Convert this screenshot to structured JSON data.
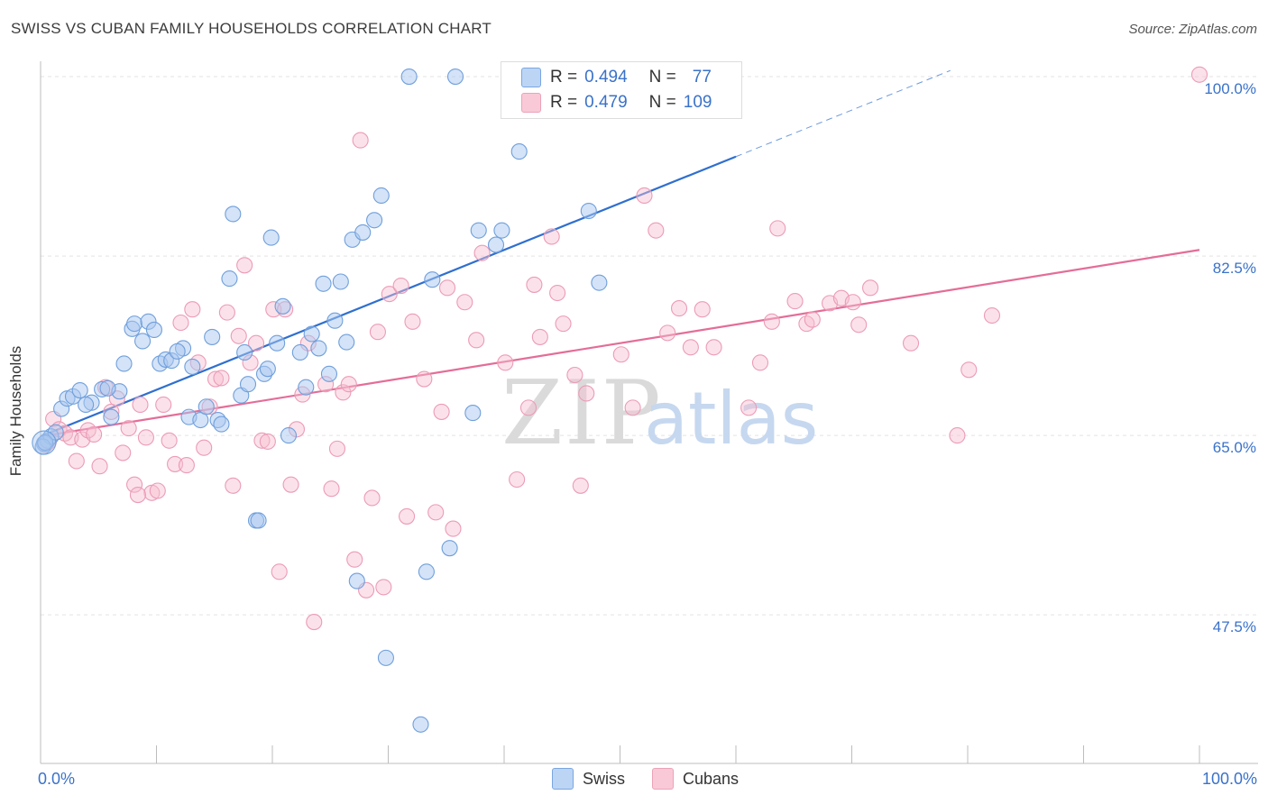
{
  "header": {
    "title": "SWISS VS CUBAN FAMILY HOUSEHOLDS CORRELATION CHART",
    "source": "Source: ZipAtlas.com"
  },
  "watermark": {
    "zip": "ZIP",
    "atlas": "atlas"
  },
  "stats": {
    "swiss": {
      "r_label": "R =",
      "r_value": "0.494",
      "n_label": "N =",
      "n_value": "77"
    },
    "cubans": {
      "r_label": "R =",
      "r_value": "0.479",
      "n_label": "N =",
      "n_value": "109"
    }
  },
  "legend": {
    "swiss": "Swiss",
    "cubans": "Cubans"
  },
  "colors": {
    "swiss_fill": "#a9c8f0",
    "swiss_line": "#2f6fcf",
    "cubans_fill": "#f7bed0",
    "cubans_line": "#e46d98",
    "tick_label": "#3a72c9"
  },
  "chart_data": {
    "type": "scatter",
    "xlabel": "",
    "ylabel": "Family Households",
    "xlim": [
      0,
      100
    ],
    "ylim": [
      33,
      101.5
    ],
    "x_tick_labels": [
      "0.0%",
      "100.0%"
    ],
    "y_ticks": [
      47.5,
      65.0,
      82.5,
      100.0
    ],
    "y_tick_labels": [
      "47.5%",
      "65.0%",
      "82.5%",
      "100.0%"
    ],
    "grid": true,
    "series": [
      {
        "name": "Swiss",
        "r": 0.494,
        "n": 77,
        "trend": {
          "x": [
            0,
            60
          ],
          "y": [
            64.9,
            92.2
          ],
          "dashed_to": [
            78.5,
            100.6
          ]
        },
        "points": [
          [
            0.3,
            64.2
          ],
          [
            0.6,
            64.5
          ],
          [
            0.9,
            64.9
          ],
          [
            1.3,
            65.3
          ],
          [
            1.8,
            67.6
          ],
          [
            2.3,
            68.6
          ],
          [
            2.8,
            68.8
          ],
          [
            3.4,
            69.4
          ],
          [
            4.4,
            68.2
          ],
          [
            5.3,
            69.5
          ],
          [
            6.1,
            66.8
          ],
          [
            6.8,
            69.3
          ],
          [
            7.2,
            72.0
          ],
          [
            7.9,
            75.4
          ],
          [
            8.1,
            75.9
          ],
          [
            8.8,
            74.2
          ],
          [
            9.3,
            76.1
          ],
          [
            9.8,
            75.3
          ],
          [
            10.3,
            72.0
          ],
          [
            10.8,
            72.4
          ],
          [
            11.3,
            72.3
          ],
          [
            12.3,
            73.5
          ],
          [
            12.8,
            66.8
          ],
          [
            13.1,
            71.7
          ],
          [
            13.8,
            66.5
          ],
          [
            14.3,
            67.8
          ],
          [
            14.8,
            74.6
          ],
          [
            15.3,
            66.5
          ],
          [
            15.6,
            66.1
          ],
          [
            16.3,
            80.3
          ],
          [
            16.6,
            86.6
          ],
          [
            17.3,
            68.9
          ],
          [
            17.6,
            73.1
          ],
          [
            18.6,
            56.7
          ],
          [
            18.8,
            56.7
          ],
          [
            19.3,
            71.0
          ],
          [
            19.6,
            71.5
          ],
          [
            19.9,
            84.3
          ],
          [
            20.4,
            74.0
          ],
          [
            20.9,
            77.6
          ],
          [
            21.4,
            65.0
          ],
          [
            22.4,
            73.1
          ],
          [
            22.9,
            69.7
          ],
          [
            23.4,
            74.9
          ],
          [
            24.4,
            79.8
          ],
          [
            24.9,
            71.0
          ],
          [
            25.4,
            76.2
          ],
          [
            25.9,
            80.0
          ],
          [
            26.4,
            74.1
          ],
          [
            26.9,
            84.1
          ],
          [
            27.3,
            50.8
          ],
          [
            27.8,
            84.8
          ],
          [
            28.8,
            86.0
          ],
          [
            29.4,
            88.4
          ],
          [
            29.8,
            43.3
          ],
          [
            31.8,
            100.0
          ],
          [
            32.8,
            36.8
          ],
          [
            33.3,
            51.7
          ],
          [
            33.8,
            80.2
          ],
          [
            35.3,
            54.0
          ],
          [
            35.8,
            100.0
          ],
          [
            37.3,
            67.2
          ],
          [
            37.8,
            85.0
          ],
          [
            39.3,
            83.6
          ],
          [
            39.8,
            85.0
          ],
          [
            41.3,
            92.7
          ],
          [
            47.3,
            86.9
          ],
          [
            48.2,
            79.9
          ],
          [
            46.0,
            100.0
          ],
          [
            53.0,
            100.0
          ],
          [
            0.2,
            63.9
          ],
          [
            0.4,
            64.3
          ],
          [
            3.9,
            68.0
          ],
          [
            5.8,
            69.6
          ],
          [
            11.8,
            73.2
          ],
          [
            17.9,
            70.0
          ],
          [
            24.0,
            73.5
          ]
        ]
      },
      {
        "name": "Cubans",
        "r": 0.479,
        "n": 109,
        "trend": {
          "x": [
            0,
            100
          ],
          "y": [
            64.9,
            83.1
          ]
        },
        "points": [
          [
            0.4,
            64.1
          ],
          [
            0.7,
            64.4
          ],
          [
            1.1,
            66.6
          ],
          [
            1.6,
            65.6
          ],
          [
            2.1,
            65.2
          ],
          [
            2.6,
            64.8
          ],
          [
            3.1,
            62.5
          ],
          [
            3.6,
            64.6
          ],
          [
            4.1,
            65.5
          ],
          [
            4.6,
            65.1
          ],
          [
            5.1,
            62.0
          ],
          [
            5.6,
            69.7
          ],
          [
            6.1,
            67.3
          ],
          [
            6.6,
            68.6
          ],
          [
            7.1,
            63.3
          ],
          [
            7.6,
            65.7
          ],
          [
            8.1,
            60.2
          ],
          [
            8.6,
            68.0
          ],
          [
            9.1,
            64.8
          ],
          [
            9.6,
            59.4
          ],
          [
            10.1,
            59.6
          ],
          [
            10.6,
            68.0
          ],
          [
            11.1,
            64.5
          ],
          [
            11.6,
            62.2
          ],
          [
            12.1,
            76.0
          ],
          [
            12.6,
            62.1
          ],
          [
            13.1,
            77.3
          ],
          [
            13.6,
            72.1
          ],
          [
            14.1,
            63.8
          ],
          [
            14.6,
            67.8
          ],
          [
            15.1,
            70.5
          ],
          [
            15.6,
            70.6
          ],
          [
            16.1,
            77.0
          ],
          [
            16.6,
            60.1
          ],
          [
            17.1,
            74.7
          ],
          [
            17.6,
            81.6
          ],
          [
            18.1,
            72.1
          ],
          [
            18.6,
            74.0
          ],
          [
            19.1,
            64.5
          ],
          [
            19.6,
            64.4
          ],
          [
            20.1,
            77.3
          ],
          [
            20.6,
            51.7
          ],
          [
            21.1,
            77.3
          ],
          [
            21.6,
            60.2
          ],
          [
            22.1,
            65.6
          ],
          [
            23.1,
            74.0
          ],
          [
            23.6,
            46.8
          ],
          [
            24.6,
            70.0
          ],
          [
            25.1,
            59.8
          ],
          [
            25.6,
            63.7
          ],
          [
            26.1,
            69.2
          ],
          [
            26.6,
            70.0
          ],
          [
            27.1,
            52.9
          ],
          [
            27.6,
            93.8
          ],
          [
            28.1,
            49.9
          ],
          [
            28.6,
            58.9
          ],
          [
            29.1,
            75.1
          ],
          [
            29.6,
            50.2
          ],
          [
            30.1,
            78.8
          ],
          [
            31.1,
            79.6
          ],
          [
            31.6,
            57.1
          ],
          [
            32.1,
            76.1
          ],
          [
            33.1,
            70.5
          ],
          [
            34.1,
            57.5
          ],
          [
            34.6,
            67.3
          ],
          [
            35.1,
            79.4
          ],
          [
            35.6,
            55.9
          ],
          [
            36.6,
            78.0
          ],
          [
            37.6,
            74.3
          ],
          [
            38.1,
            82.8
          ],
          [
            40.1,
            72.1
          ],
          [
            41.1,
            60.7
          ],
          [
            42.1,
            67.7
          ],
          [
            42.6,
            79.7
          ],
          [
            43.1,
            74.6
          ],
          [
            44.1,
            84.4
          ],
          [
            44.6,
            78.9
          ],
          [
            45.1,
            75.9
          ],
          [
            46.1,
            70.9
          ],
          [
            46.6,
            60.1
          ],
          [
            47.1,
            69.1
          ],
          [
            50.1,
            72.9
          ],
          [
            51.1,
            67.7
          ],
          [
            52.1,
            88.4
          ],
          [
            53.1,
            85.0
          ],
          [
            54.1,
            75.0
          ],
          [
            55.1,
            77.4
          ],
          [
            56.1,
            73.6
          ],
          [
            57.1,
            77.3
          ],
          [
            58.1,
            73.6
          ],
          [
            61.1,
            67.7
          ],
          [
            62.1,
            72.1
          ],
          [
            63.1,
            76.1
          ],
          [
            63.6,
            85.2
          ],
          [
            65.1,
            78.1
          ],
          [
            66.1,
            75.9
          ],
          [
            66.6,
            76.3
          ],
          [
            68.1,
            77.9
          ],
          [
            69.1,
            78.4
          ],
          [
            70.1,
            78.0
          ],
          [
            70.6,
            75.8
          ],
          [
            71.6,
            79.4
          ],
          [
            75.1,
            74.0
          ],
          [
            79.1,
            65.0
          ],
          [
            80.1,
            71.4
          ],
          [
            82.1,
            76.7
          ],
          [
            100.0,
            100.2
          ],
          [
            8.4,
            59.2
          ],
          [
            22.6,
            69.0
          ]
        ]
      }
    ]
  }
}
